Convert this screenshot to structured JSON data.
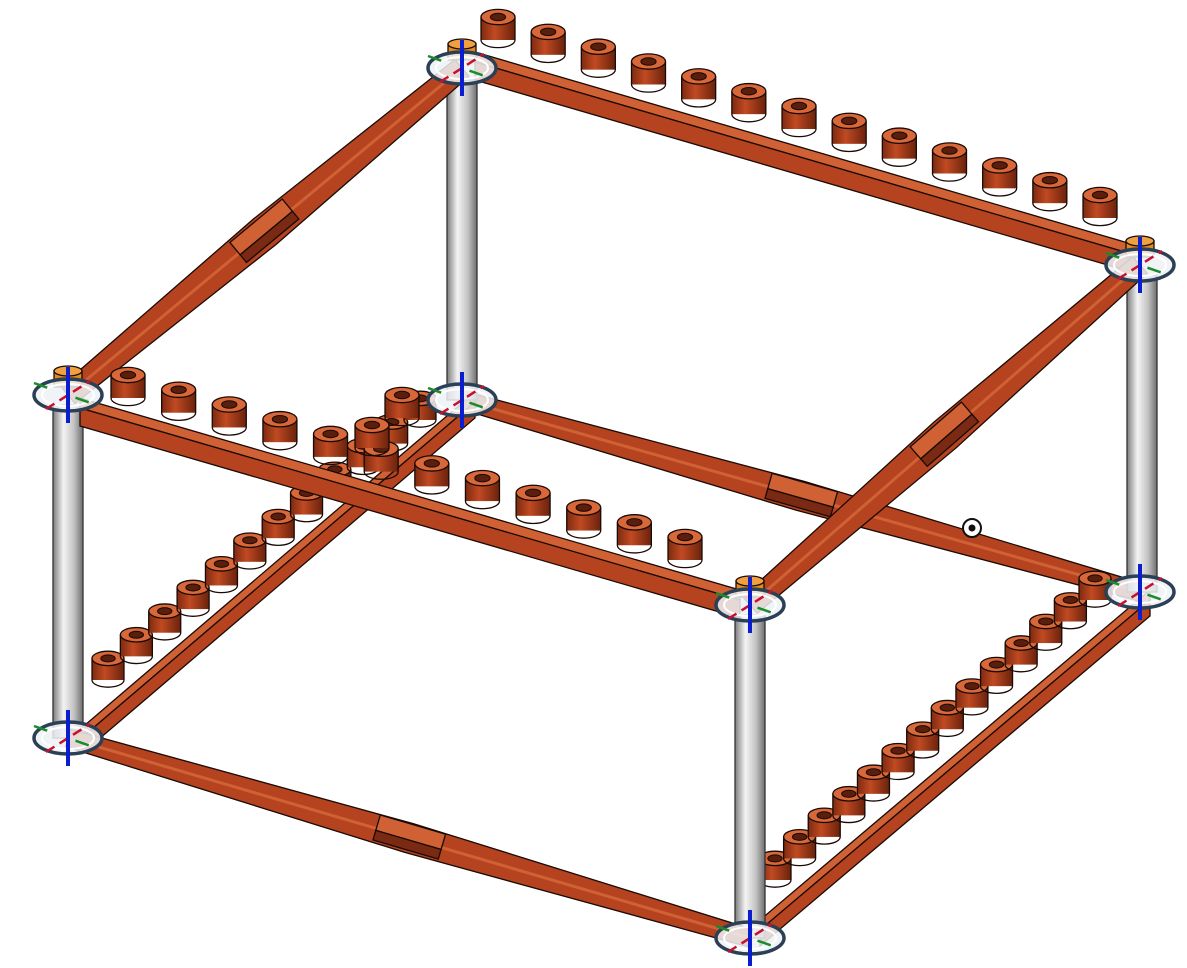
{
  "colors": {
    "background": "#ffffff",
    "beam_front": "#b5431f",
    "beam_top": "#cf6135",
    "beam_shadow": "#7a2a12",
    "peg_body": "#a63a1a",
    "peg_top": "#d8673a",
    "peg_hole": "#5a1e0c",
    "post_light": "#e8e8e8",
    "post_dark": "#8a8a8a",
    "axis_x": "#c8102e",
    "axis_y": "#1a8c2a",
    "axis_z": "#0a1ed0",
    "ring": "#2b3f55",
    "ring_fill": "#eef2f6",
    "cap": "#e08a1e"
  },
  "scene": {
    "beams": [
      "top-back",
      "top-left",
      "top-right",
      "top-front",
      "bottom-left",
      "bottom-front",
      "bottom-right",
      "bottom-back"
    ],
    "posts": [
      "post-back",
      "post-left",
      "post-right",
      "post-front"
    ],
    "mate_markers": [
      "mate-top-back",
      "mate-top-left",
      "mate-top-right",
      "mate-top-front",
      "mate-bottom-left",
      "mate-bottom-front",
      "mate-bottom-right",
      "mate-bottom-back"
    ],
    "pivot_marker": "origin-point-icon"
  }
}
